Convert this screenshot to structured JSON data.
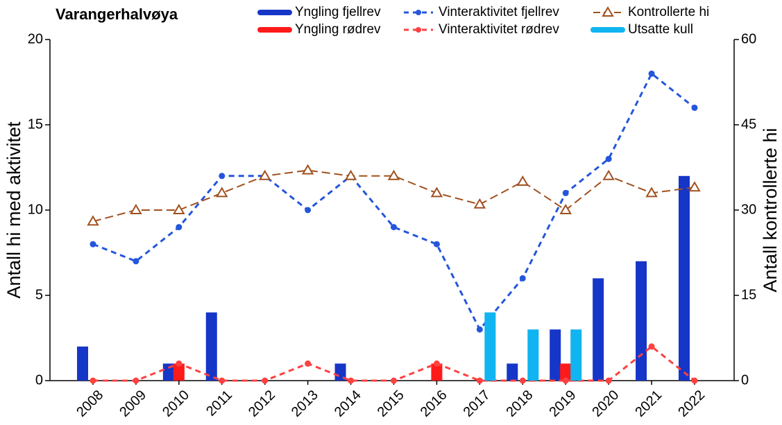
{
  "chart_data": {
    "type": "bar",
    "title": "Varangerhalvøya",
    "y_label": "Antall hi med aktivitet",
    "y2_label": "Antall kontrollerte hi",
    "categories": [
      "2008",
      "2009",
      "2010",
      "2011",
      "2012",
      "2013",
      "2014",
      "2015",
      "2016",
      "2017",
      "2018",
      "2019",
      "2020",
      "2021",
      "2022"
    ],
    "ylim": [
      0,
      20
    ],
    "yticks": [
      0,
      5,
      10,
      15,
      20
    ],
    "y2lim": [
      0,
      60
    ],
    "y2ticks": [
      0,
      15,
      30,
      45,
      60
    ],
    "series": [
      {
        "name": "Yngling fjellrev",
        "type": "bar",
        "color": "#1636c8",
        "values": [
          2,
          0,
          1,
          4,
          0,
          0,
          1,
          0,
          0,
          0,
          1,
          3,
          6,
          7,
          12
        ]
      },
      {
        "name": "Vinteraktivitet fjellrev",
        "type": "line",
        "color": "#2456dc",
        "linestyle": "dashed",
        "marker": "circle",
        "values": [
          8,
          7,
          9,
          12,
          12,
          10,
          12,
          9,
          8,
          3,
          6,
          11,
          13,
          18,
          16
        ]
      },
      {
        "name": "Kontrollerte hi",
        "type": "line",
        "axis": "y2",
        "color": "#a0501e",
        "linestyle": "dashed",
        "marker": "triangle",
        "values": [
          28,
          30,
          30,
          33,
          36,
          37,
          36,
          36,
          33,
          31,
          35,
          30,
          36,
          33,
          34
        ]
      },
      {
        "name": "Yngling rødrev",
        "type": "bar",
        "color": "#ff1a1a",
        "values": [
          0,
          0,
          1,
          0,
          0,
          0,
          0,
          0,
          1,
          0,
          0,
          1,
          0,
          0,
          0
        ]
      },
      {
        "name": "Vinteraktivitet rødrev",
        "type": "line",
        "color": "#ff4040",
        "linestyle": "dashed",
        "marker": "circle",
        "values": [
          0,
          0,
          1,
          0,
          0,
          1,
          0,
          0,
          1,
          0,
          0,
          0,
          0,
          2,
          0
        ]
      },
      {
        "name": "Utsatte kull",
        "type": "bar",
        "color": "#10b4f0",
        "values": [
          0,
          0,
          0,
          0,
          0,
          0,
          0,
          0,
          0,
          4,
          3,
          3,
          0,
          0,
          0
        ]
      }
    ]
  }
}
